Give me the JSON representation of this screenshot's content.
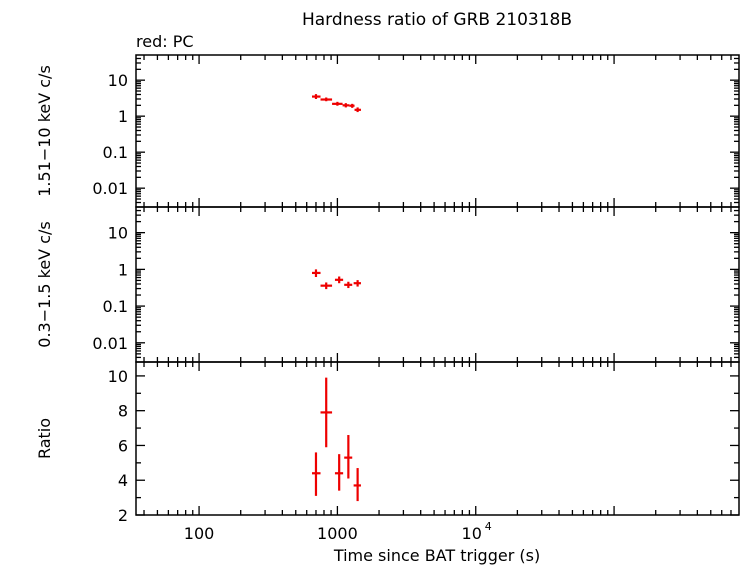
{
  "chart_data": {
    "type": "scatter",
    "title": "Hardness ratio of GRB 210318B",
    "legend_text": "red: PC",
    "colors": {
      "series": "#ee0000",
      "axes": "#000000",
      "background": "#ffffff"
    },
    "grid": false,
    "x": {
      "label": "Time since BAT trigger (s)",
      "scale": "log",
      "range": [
        35,
        800000
      ],
      "ticks": [
        {
          "value": 100,
          "label": "100",
          "exp": ""
        },
        {
          "value": 1000,
          "label": "1000",
          "exp": ""
        },
        {
          "value": 10000,
          "label": "10",
          "exp": "4"
        }
      ]
    },
    "panels": [
      {
        "ylabel": "1.51−10 keV c/s",
        "yscale": "log",
        "ylim": [
          0.003,
          50
        ],
        "yticks": [
          {
            "value": 10,
            "label": "10"
          },
          {
            "value": 1,
            "label": "1"
          },
          {
            "value": 0.1,
            "label": "0.1"
          },
          {
            "value": 0.01,
            "label": "0.01"
          }
        ],
        "series": [
          {
            "name": "PC",
            "points": [
              {
                "x": 700,
                "xlo": 655,
                "xhi": 755,
                "y": 3.5,
                "ylo": 3.0,
                "yhi": 4.1
              },
              {
                "x": 830,
                "xlo": 755,
                "xhi": 915,
                "y": 2.9,
                "ylo": 2.6,
                "yhi": 3.3
              },
              {
                "x": 1000,
                "xlo": 915,
                "xhi": 1090,
                "y": 2.2,
                "ylo": 1.95,
                "yhi": 2.5
              },
              {
                "x": 1150,
                "xlo": 1090,
                "xhi": 1220,
                "y": 2.0,
                "ylo": 1.75,
                "yhi": 2.3
              },
              {
                "x": 1280,
                "xlo": 1220,
                "xhi": 1330,
                "y": 1.95,
                "ylo": 1.7,
                "yhi": 2.2
              },
              {
                "x": 1400,
                "xlo": 1330,
                "xhi": 1480,
                "y": 1.5,
                "ylo": 1.3,
                "yhi": 1.75
              }
            ]
          }
        ]
      },
      {
        "ylabel": "0.3−1.5 keV c/s",
        "yscale": "log",
        "ylim": [
          0.003,
          50
        ],
        "yticks": [
          {
            "value": 10,
            "label": "10"
          },
          {
            "value": 1,
            "label": "1"
          },
          {
            "value": 0.1,
            "label": "0.1"
          },
          {
            "value": 0.01,
            "label": "0.01"
          }
        ],
        "series": [
          {
            "name": "PC",
            "points": [
              {
                "x": 700,
                "xlo": 655,
                "xhi": 755,
                "y": 0.8,
                "ylo": 0.62,
                "yhi": 1.0
              },
              {
                "x": 830,
                "xlo": 755,
                "xhi": 915,
                "y": 0.36,
                "ylo": 0.29,
                "yhi": 0.44
              },
              {
                "x": 1030,
                "xlo": 960,
                "xhi": 1100,
                "y": 0.52,
                "ylo": 0.42,
                "yhi": 0.64
              },
              {
                "x": 1200,
                "xlo": 1120,
                "xhi": 1280,
                "y": 0.38,
                "ylo": 0.31,
                "yhi": 0.46
              },
              {
                "x": 1400,
                "xlo": 1310,
                "xhi": 1480,
                "y": 0.42,
                "ylo": 0.34,
                "yhi": 0.51
              }
            ]
          }
        ]
      },
      {
        "ylabel": "Ratio",
        "yscale": "linear",
        "ylim": [
          2,
          10.8
        ],
        "yticks": [
          {
            "value": 10,
            "label": "10"
          },
          {
            "value": 8,
            "label": "8"
          },
          {
            "value": 6,
            "label": "6"
          },
          {
            "value": 4,
            "label": "4"
          },
          {
            "value": 2,
            "label": "2"
          }
        ],
        "series": [
          {
            "name": "PC",
            "points": [
              {
                "x": 700,
                "xlo": 655,
                "xhi": 755,
                "y": 4.4,
                "ylo": 3.1,
                "yhi": 5.6
              },
              {
                "x": 830,
                "xlo": 755,
                "xhi": 915,
                "y": 7.9,
                "ylo": 5.9,
                "yhi": 9.9
              },
              {
                "x": 1030,
                "xlo": 960,
                "xhi": 1100,
                "y": 4.4,
                "ylo": 3.4,
                "yhi": 5.5
              },
              {
                "x": 1200,
                "xlo": 1120,
                "xhi": 1280,
                "y": 5.3,
                "ylo": 4.1,
                "yhi": 6.6
              },
              {
                "x": 1400,
                "xlo": 1310,
                "xhi": 1480,
                "y": 3.7,
                "ylo": 2.8,
                "yhi": 4.7
              }
            ]
          }
        ]
      }
    ]
  }
}
